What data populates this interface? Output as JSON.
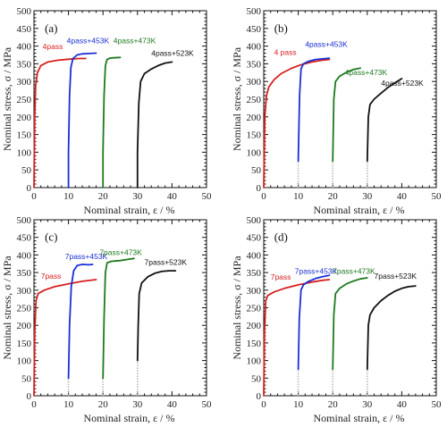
{
  "chart_data": [
    {
      "panel": "(a)",
      "type": "line",
      "xlabel": "Nominal strain, ε / %",
      "ylabel": "Nominal stress, σ / MPa",
      "xlim": [
        0,
        50
      ],
      "ylim": [
        0,
        500
      ],
      "xticks": [
        0,
        10,
        20,
        30,
        40,
        50
      ],
      "yticks": [
        0,
        50,
        100,
        150,
        200,
        250,
        300,
        350,
        400,
        450,
        500
      ],
      "grid": false,
      "series": [
        {
          "name": "4pass",
          "color": "#d62020",
          "points": [
            [
              0,
              0
            ],
            [
              0.2,
              200
            ],
            [
              0.5,
              290
            ],
            [
              1,
              325
            ],
            [
              2,
              345
            ],
            [
              4,
              355
            ],
            [
              7,
              360
            ],
            [
              10,
              363
            ],
            [
              13,
              365
            ],
            [
              15,
              365
            ]
          ]
        },
        {
          "name": "4pass+453K",
          "color": "#1a2fd6",
          "points": [
            [
              10,
              0
            ],
            [
              10,
              100
            ],
            [
              10.3,
              260
            ],
            [
              10.7,
              340
            ],
            [
              11.3,
              365
            ],
            [
              12.5,
              375
            ],
            [
              14,
              378
            ],
            [
              16,
              379
            ],
            [
              18,
              380
            ]
          ]
        },
        {
          "name": "4pass+473K",
          "color": "#1e7a1e",
          "points": [
            [
              20,
              0
            ],
            [
              20,
              100
            ],
            [
              20.3,
              260
            ],
            [
              20.7,
              345
            ],
            [
              21.2,
              362
            ],
            [
              22,
              366
            ],
            [
              23,
              367
            ],
            [
              25,
              368
            ]
          ]
        },
        {
          "name": "4pass+523K",
          "color": "#111111",
          "points": [
            [
              30,
              0
            ],
            [
              30,
              100
            ],
            [
              30.4,
              240
            ],
            [
              30.9,
              300
            ],
            [
              32,
              322
            ],
            [
              34,
              335
            ],
            [
              36,
              345
            ],
            [
              38,
              352
            ],
            [
              40,
              355
            ]
          ]
        }
      ]
    },
    {
      "panel": "(b)",
      "type": "line",
      "xlabel": "Nominal strain, ε / %",
      "ylabel": "Nominal stress, σ / MPa",
      "xlim": [
        0,
        50
      ],
      "ylim": [
        0,
        500
      ],
      "xticks": [
        0,
        10,
        20,
        30,
        40,
        50
      ],
      "yticks": [
        0,
        50,
        100,
        150,
        200,
        250,
        300,
        350,
        400,
        450,
        500
      ],
      "grid": false,
      "series": [
        {
          "name": "4 pass",
          "color": "#d62020",
          "points": [
            [
              0,
              0
            ],
            [
              0.3,
              200
            ],
            [
              0.8,
              260
            ],
            [
              1.5,
              285
            ],
            [
              3,
              305
            ],
            [
              5,
              322
            ],
            [
              8,
              337
            ],
            [
              11,
              348
            ],
            [
              14,
              355
            ],
            [
              17,
              360
            ],
            [
              19,
              362
            ]
          ]
        },
        {
          "name": "4pass+453K",
          "color": "#1a2fd6",
          "points": [
            [
              10,
              75
            ],
            [
              10.4,
              260
            ],
            [
              10.8,
              335
            ],
            [
              11.5,
              350
            ],
            [
              13,
              357
            ],
            [
              15,
              362
            ],
            [
              17,
              364
            ],
            [
              19,
              366
            ]
          ]
        },
        {
          "name": "4pass+473K",
          "color": "#1e7a1e",
          "points": [
            [
              20,
              75
            ],
            [
              20.3,
              250
            ],
            [
              20.8,
              300
            ],
            [
              22,
              315
            ],
            [
              24,
              326
            ],
            [
              26,
              334
            ],
            [
              28,
              338
            ]
          ]
        },
        {
          "name": "4pass+523K",
          "color": "#111111",
          "points": [
            [
              30,
              75
            ],
            [
              30.3,
              200
            ],
            [
              30.8,
              235
            ],
            [
              32,
              250
            ],
            [
              34,
              267
            ],
            [
              36,
              283
            ],
            [
              38,
              296
            ],
            [
              40,
              308
            ]
          ]
        }
      ]
    },
    {
      "panel": "(c)",
      "type": "line",
      "xlabel": "Nominal strain, ε / %",
      "ylabel": "Nominal stress, σ / MPa",
      "xlim": [
        0,
        50
      ],
      "ylim": [
        0,
        500
      ],
      "xticks": [
        0,
        10,
        20,
        30,
        40,
        50
      ],
      "yticks": [
        0,
        50,
        100,
        150,
        200,
        250,
        300,
        350,
        400,
        450,
        500
      ],
      "grid": false,
      "series": [
        {
          "name": "7pass",
          "color": "#d62020",
          "points": [
            [
              0,
              0
            ],
            [
              0.2,
              180
            ],
            [
              0.6,
              270
            ],
            [
              1.2,
              290
            ],
            [
              3,
              300
            ],
            [
              6,
              310
            ],
            [
              10,
              318
            ],
            [
              14,
              325
            ],
            [
              18,
              330
            ]
          ]
        },
        {
          "name": "7pass+453K",
          "color": "#1a2fd6",
          "points": [
            [
              10,
              50
            ],
            [
              10.3,
              200
            ],
            [
              10.8,
              310
            ],
            [
              11.5,
              355
            ],
            [
              12.5,
              370
            ],
            [
              14,
              373
            ],
            [
              16,
              372
            ],
            [
              17,
              373
            ]
          ]
        },
        {
          "name": "7pass+473K",
          "color": "#1e7a1e",
          "points": [
            [
              20,
              50
            ],
            [
              20.3,
              220
            ],
            [
              20.7,
              350
            ],
            [
              21.2,
              378
            ],
            [
              22.5,
              382
            ],
            [
              25,
              384
            ],
            [
              27,
              387
            ],
            [
              29,
              390
            ]
          ]
        },
        {
          "name": "7pass+523K",
          "color": "#111111",
          "points": [
            [
              30,
              100
            ],
            [
              30.2,
              200
            ],
            [
              30.5,
              290
            ],
            [
              31.2,
              320
            ],
            [
              33,
              338
            ],
            [
              35,
              348
            ],
            [
              37,
              353
            ],
            [
              39,
              355
            ],
            [
              41,
              355
            ]
          ]
        }
      ]
    },
    {
      "panel": "(d)",
      "type": "line",
      "xlabel": "Nominal strain, ε / %",
      "ylabel": "Nominal stress, σ / MPa",
      "xlim": [
        0,
        50
      ],
      "ylim": [
        0,
        500
      ],
      "xticks": [
        0,
        10,
        20,
        30,
        40,
        50
      ],
      "yticks": [
        0,
        50,
        100,
        150,
        200,
        250,
        300,
        350,
        400,
        450,
        500
      ],
      "grid": false,
      "series": [
        {
          "name": "7pass",
          "color": "#d62020",
          "points": [
            [
              0,
              0
            ],
            [
              0.2,
              180
            ],
            [
              0.6,
              270
            ],
            [
              1.2,
              285
            ],
            [
              3,
              295
            ],
            [
              6,
              305
            ],
            [
              10,
              315
            ],
            [
              14,
              323
            ],
            [
              17,
              328
            ],
            [
              19,
              330
            ]
          ]
        },
        {
          "name": "7pass+453K",
          "color": "#1a2fd6",
          "points": [
            [
              10,
              75
            ],
            [
              10.3,
              220
            ],
            [
              10.8,
              300
            ],
            [
              11.5,
              315
            ],
            [
              13,
              325
            ],
            [
              15,
              333
            ],
            [
              17,
              338
            ],
            [
              19,
              342
            ]
          ]
        },
        {
          "name": "7pass+473K",
          "color": "#1e7a1e",
          "points": [
            [
              20,
              75
            ],
            [
              20.3,
              230
            ],
            [
              20.8,
              290
            ],
            [
              22,
              305
            ],
            [
              24,
              318
            ],
            [
              26,
              326
            ],
            [
              28,
              332
            ],
            [
              30,
              335
            ]
          ]
        },
        {
          "name": "7pass+523K",
          "color": "#111111",
          "points": [
            [
              30,
              75
            ],
            [
              30.3,
              200
            ],
            [
              30.8,
              230
            ],
            [
              32,
              250
            ],
            [
              34,
              270
            ],
            [
              36,
              285
            ],
            [
              38,
              297
            ],
            [
              40,
              305
            ],
            [
              42,
              310
            ],
            [
              44,
              312
            ]
          ]
        }
      ]
    }
  ]
}
